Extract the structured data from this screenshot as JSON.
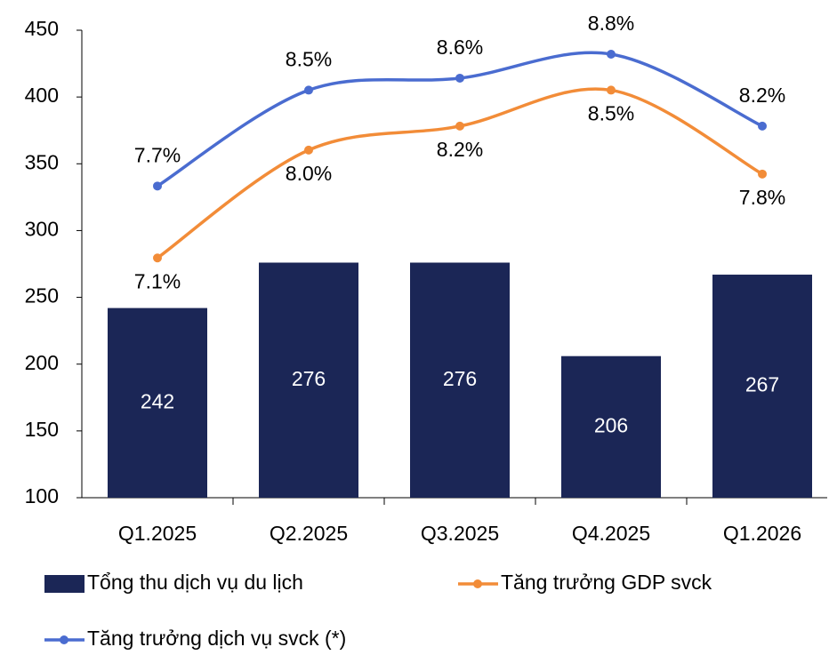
{
  "chart_data": {
    "type": "bar",
    "categories": [
      "Q1.2025",
      "Q2.2025",
      "Q3.2025",
      "Q4.2025",
      "Q1.2026"
    ],
    "ylim": [
      100,
      450
    ],
    "yticks": [
      100,
      150,
      200,
      250,
      300,
      350,
      400,
      450
    ],
    "y2lim": [
      5.1,
      9.0
    ],
    "series": [
      {
        "name": "Tổng thu dịch vụ du lịch",
        "type": "bar",
        "color": "#1b2656",
        "values": [
          242,
          276,
          276,
          206,
          267
        ]
      },
      {
        "name": "Tăng trưởng GDP svck",
        "type": "line",
        "axis": "y2",
        "color": "#f28c38",
        "values": [
          7.1,
          8.0,
          8.2,
          8.5,
          7.8
        ],
        "value_labels": [
          "7.1%",
          "8.0%",
          "8.2%",
          "8.5%",
          "7.8%"
        ]
      },
      {
        "name": "Tăng trưởng dịch vụ svck (*)",
        "type": "line",
        "axis": "y2",
        "color": "#4a6cd0",
        "values": [
          7.7,
          8.5,
          8.6,
          8.8,
          8.2
        ],
        "value_labels": [
          "7.7%",
          "8.5%",
          "8.6%",
          "8.8%",
          "8.2%"
        ]
      }
    ]
  }
}
